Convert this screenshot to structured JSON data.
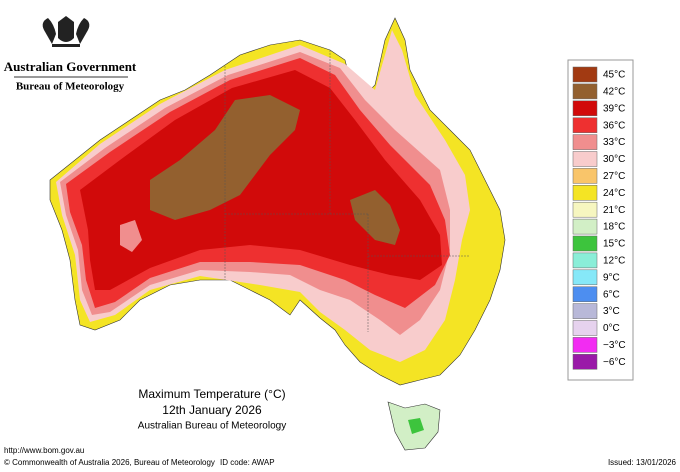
{
  "header": {
    "government": "Australian Government",
    "bureau": "Bureau of Meteorology"
  },
  "title": {
    "line1": "Maximum Temperature (°C)",
    "line2": "12th January 2026",
    "line3": "Australian Bureau of Meteorology"
  },
  "legend": [
    {
      "label": "45°C",
      "color": "#a23a12"
    },
    {
      "label": "42°C",
      "color": "#93602f"
    },
    {
      "label": "39°C",
      "color": "#d10a0a"
    },
    {
      "label": "36°C",
      "color": "#ee3030"
    },
    {
      "label": "33°C",
      "color": "#f08e8e"
    },
    {
      "label": "30°C",
      "color": "#f8cccc"
    },
    {
      "label": "27°C",
      "color": "#f9c56a"
    },
    {
      "label": "24°C",
      "color": "#f4e424"
    },
    {
      "label": "21°C",
      "color": "#f6f6c0"
    },
    {
      "label": "18°C",
      "color": "#d2efc6"
    },
    {
      "label": "15°C",
      "color": "#3dc43d"
    },
    {
      "label": "12°C",
      "color": "#8aeed8"
    },
    {
      "label": "9°C",
      "color": "#86e8f8"
    },
    {
      "label": "6°C",
      "color": "#4d8ef0"
    },
    {
      "label": "3°C",
      "color": "#b8b8d8"
    },
    {
      "label": "0°C",
      "color": "#e6d2ee"
    },
    {
      "label": "−3°C",
      "color": "#f22cf2"
    },
    {
      "label": "−6°C",
      "color": "#9a1aa8"
    }
  ],
  "footer": {
    "url": "http://www.bom.gov.au",
    "copyright": "© Commonwealth of Australia 2026, Bureau of Meteorology",
    "id": "ID code: AWAP",
    "issued": "Issued: 13/01/2026"
  }
}
